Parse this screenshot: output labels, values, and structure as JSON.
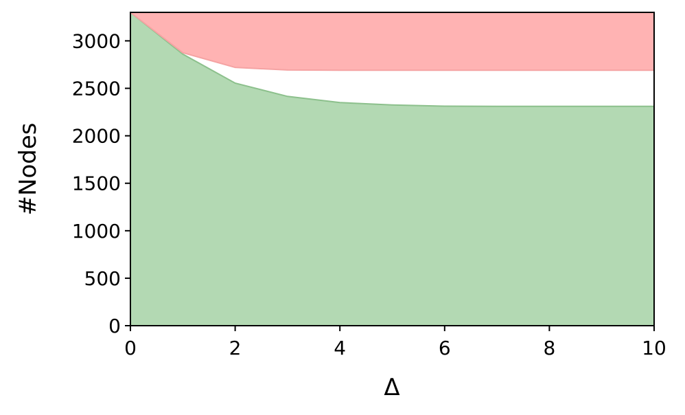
{
  "chart_data": {
    "type": "area",
    "x": [
      0,
      1,
      2,
      3,
      4,
      5,
      6,
      7,
      8,
      9,
      10
    ],
    "series": [
      {
        "color": "#b3d9b3",
        "line_color": "#8cc08c",
        "fill": "bottom",
        "values": [
          3300,
          2860,
          2555,
          2415,
          2350,
          2325,
          2312,
          2310,
          2310,
          2310,
          2310
        ]
      },
      {
        "color": "#ffb3b3",
        "line_color": "#f5a3a3",
        "fill": "top",
        "values": [
          3300,
          2875,
          2720,
          2693,
          2690,
          2690,
          2690,
          2690,
          2690,
          2690,
          2690
        ]
      }
    ],
    "xlabel": "Δ",
    "ylabel": "#Nodes",
    "xlim": [
      0,
      10
    ],
    "xticks": [
      0,
      2,
      4,
      6,
      8,
      10
    ],
    "ylim": [
      0,
      3300
    ],
    "yticks": [
      0,
      500,
      1000,
      1500,
      2000,
      2500,
      3000
    ]
  }
}
